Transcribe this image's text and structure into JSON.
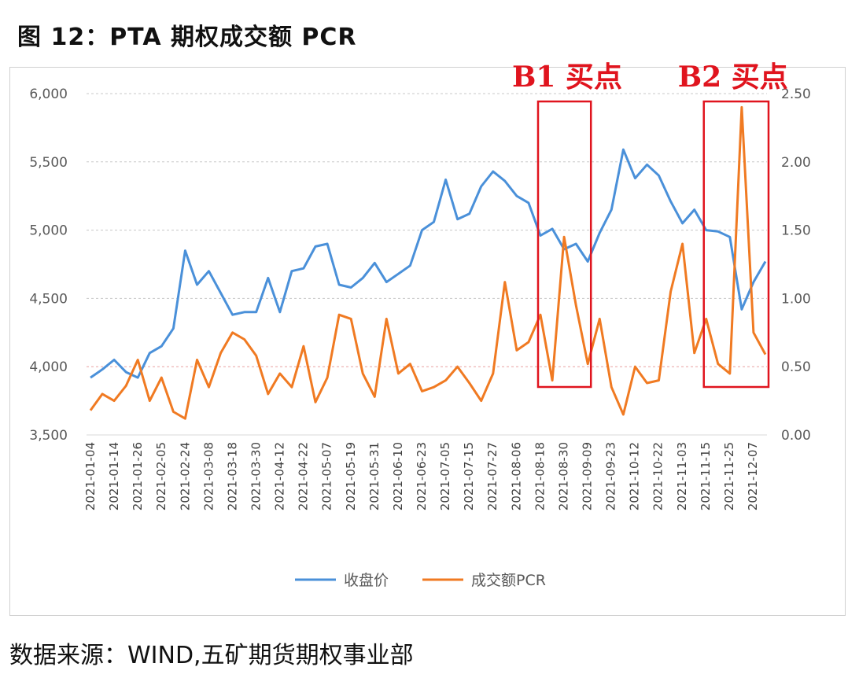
{
  "title": "图 12：PTA 期权成交额 PCR",
  "source": "数据来源：WIND,五矿期货期权事业部",
  "chart_data": {
    "type": "line",
    "title": "图 12：PTA 期权成交额 PCR",
    "x_tick_labels": [
      "2021-01-04",
      "2021-01-14",
      "2021-01-26",
      "2021-02-05",
      "2021-02-24",
      "2021-03-08",
      "2021-03-18",
      "2021-03-30",
      "2021-04-12",
      "2021-04-22",
      "2021-05-07",
      "2021-05-19",
      "2021-05-31",
      "2021-06-10",
      "2021-06-23",
      "2021-07-05",
      "2021-07-15",
      "2021-07-27",
      "2021-08-06",
      "2021-08-18",
      "2021-08-30",
      "2021-09-09",
      "2021-09-23",
      "2021-10-12",
      "2021-10-22",
      "2021-11-03",
      "2021-11-15",
      "2021-11-25",
      "2021-12-07"
    ],
    "x": [
      "2021-01-04",
      "2021-01-09",
      "2021-01-14",
      "2021-01-20",
      "2021-01-26",
      "2021-01-31",
      "2021-02-05",
      "2021-02-15",
      "2021-02-24",
      "2021-03-02",
      "2021-03-08",
      "2021-03-13",
      "2021-03-18",
      "2021-03-24",
      "2021-03-30",
      "2021-04-06",
      "2021-04-12",
      "2021-04-17",
      "2021-04-22",
      "2021-04-30",
      "2021-05-07",
      "2021-05-13",
      "2021-05-19",
      "2021-05-25",
      "2021-05-31",
      "2021-06-05",
      "2021-06-10",
      "2021-06-16",
      "2021-06-23",
      "2021-06-29",
      "2021-07-05",
      "2021-07-10",
      "2021-07-15",
      "2021-07-21",
      "2021-07-27",
      "2021-08-01",
      "2021-08-06",
      "2021-08-12",
      "2021-08-18",
      "2021-08-24",
      "2021-08-30",
      "2021-09-04",
      "2021-09-09",
      "2021-09-16",
      "2021-09-23",
      "2021-10-02",
      "2021-10-12",
      "2021-10-17",
      "2021-10-22",
      "2021-10-28",
      "2021-11-03",
      "2021-11-09",
      "2021-11-15",
      "2021-11-20",
      "2021-11-25",
      "2021-12-01",
      "2021-12-07",
      "2021-12-13"
    ],
    "y_left": {
      "ylim": [
        3500,
        6000
      ],
      "ticks": [
        "3,500",
        "4,000",
        "4,500",
        "5,000",
        "5,500",
        "6,000"
      ]
    },
    "y_right": {
      "ylim": [
        0,
        2.5
      ],
      "ticks": [
        "0.00",
        "0.50",
        "1.00",
        "1.50",
        "2.00",
        "2.50"
      ]
    },
    "grid": true,
    "legend_position": "bottom",
    "series": [
      {
        "name": "收盘价",
        "axis": "left",
        "color": "#4a90d9",
        "values": [
          3920,
          3980,
          4050,
          3960,
          3920,
          4100,
          4150,
          4280,
          4850,
          4600,
          4700,
          4540,
          4380,
          4400,
          4400,
          4650,
          4400,
          4700,
          4720,
          4880,
          4900,
          4600,
          4580,
          4650,
          4760,
          4620,
          4680,
          4740,
          5000,
          5060,
          5370,
          5080,
          5120,
          5320,
          5430,
          5360,
          5250,
          5200,
          4960,
          5010,
          4860,
          4900,
          4770,
          4980,
          5150,
          5590,
          5380,
          5480,
          5400,
          5210,
          5050,
          5150,
          5000,
          4990,
          4950,
          4420,
          4620,
          4770
        ]
      },
      {
        "name": "成交额PCR",
        "axis": "right",
        "color": "#f07a22",
        "values": [
          0.18,
          0.3,
          0.25,
          0.36,
          0.55,
          0.25,
          0.42,
          0.17,
          0.12,
          0.55,
          0.35,
          0.6,
          0.75,
          0.7,
          0.58,
          0.3,
          0.45,
          0.35,
          0.65,
          0.24,
          0.42,
          0.88,
          0.85,
          0.45,
          0.28,
          0.85,
          0.45,
          0.52,
          0.32,
          0.35,
          0.4,
          0.5,
          0.38,
          0.25,
          0.45,
          1.12,
          0.62,
          0.68,
          0.88,
          0.4,
          1.45,
          0.95,
          0.52,
          0.85,
          0.35,
          0.15,
          0.5,
          0.38,
          0.4,
          1.05,
          1.4,
          0.6,
          0.85,
          0.52,
          0.45,
          2.4,
          0.75,
          0.59
        ]
      }
    ],
    "annotations": [
      {
        "label": "B1 买点",
        "start": "2021-08-18",
        "end": "2021-09-09",
        "color": "#e0141e"
      },
      {
        "label": "B2 买点",
        "start": "2021-11-15",
        "end": "2021-12-13",
        "color": "#e0141e"
      }
    ]
  }
}
